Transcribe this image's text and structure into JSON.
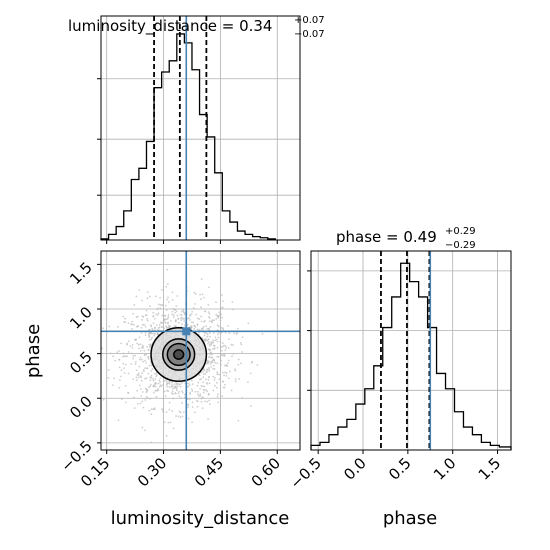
{
  "colors": {
    "truth": "#4682b4",
    "histogram": "#000000",
    "contour": "#000000",
    "grid": "#b0b0b0",
    "scatter": "#bbbbbb"
  },
  "chart_data": {
    "type": "corner",
    "parameters": [
      "luminosity_distance",
      "phase"
    ],
    "truths": {
      "luminosity_distance": 0.36,
      "phase": 0.75
    },
    "titles": [
      {
        "param": "luminosity_distance",
        "median": "0.34",
        "plus": "+0.07",
        "minus": "−0.07"
      },
      {
        "param": "phase",
        "median": "0.49",
        "plus": "+0.29",
        "minus": "−0.29"
      }
    ],
    "marginals": {
      "luminosity_distance": {
        "xlim": [
          0.135,
          0.66
        ],
        "quantiles": [
          0.275,
          0.343,
          0.413
        ],
        "bins": [
          {
            "x0": 0.135,
            "x1": 0.155,
            "density": 0.05
          },
          {
            "x0": 0.155,
            "x1": 0.175,
            "density": 0.25
          },
          {
            "x0": 0.175,
            "x1": 0.195,
            "density": 0.6
          },
          {
            "x0": 0.195,
            "x1": 0.215,
            "density": 1.3
          },
          {
            "x0": 0.215,
            "x1": 0.235,
            "density": 2.7
          },
          {
            "x0": 0.235,
            "x1": 0.255,
            "density": 3.2
          },
          {
            "x0": 0.255,
            "x1": 0.275,
            "density": 4.4
          },
          {
            "x0": 0.275,
            "x1": 0.295,
            "density": 6.8
          },
          {
            "x0": 0.295,
            "x1": 0.315,
            "density": 7.5
          },
          {
            "x0": 0.315,
            "x1": 0.335,
            "density": 8.0
          },
          {
            "x0": 0.335,
            "x1": 0.355,
            "density": 9.2
          },
          {
            "x0": 0.355,
            "x1": 0.375,
            "density": 8.8
          },
          {
            "x0": 0.375,
            "x1": 0.395,
            "density": 7.6
          },
          {
            "x0": 0.395,
            "x1": 0.415,
            "density": 5.6
          },
          {
            "x0": 0.415,
            "x1": 0.435,
            "density": 4.6
          },
          {
            "x0": 0.435,
            "x1": 0.455,
            "density": 3.0
          },
          {
            "x0": 0.455,
            "x1": 0.475,
            "density": 1.3
          },
          {
            "x0": 0.475,
            "x1": 0.495,
            "density": 0.8
          },
          {
            "x0": 0.495,
            "x1": 0.515,
            "density": 0.4
          },
          {
            "x0": 0.515,
            "x1": 0.535,
            "density": 0.25
          },
          {
            "x0": 0.535,
            "x1": 0.555,
            "density": 0.15
          },
          {
            "x0": 0.555,
            "x1": 0.575,
            "density": 0.1
          },
          {
            "x0": 0.575,
            "x1": 0.595,
            "density": 0.05
          }
        ],
        "ymax": 10
      },
      "phase": {
        "xlim": [
          -0.58,
          1.65
        ],
        "quantiles": [
          0.2,
          0.49,
          0.74
        ],
        "bins": [
          {
            "x0": -0.58,
            "x1": -0.48,
            "density": 0.03
          },
          {
            "x0": -0.48,
            "x1": -0.38,
            "density": 0.05
          },
          {
            "x0": -0.38,
            "x1": -0.28,
            "density": 0.1
          },
          {
            "x0": -0.28,
            "x1": -0.18,
            "density": 0.15
          },
          {
            "x0": -0.18,
            "x1": -0.08,
            "density": 0.2
          },
          {
            "x0": -0.08,
            "x1": 0.02,
            "density": 0.3
          },
          {
            "x0": 0.02,
            "x1": 0.12,
            "density": 0.4
          },
          {
            "x0": 0.12,
            "x1": 0.22,
            "density": 0.55
          },
          {
            "x0": 0.22,
            "x1": 0.32,
            "density": 0.8
          },
          {
            "x0": 0.32,
            "x1": 0.42,
            "density": 1.0
          },
          {
            "x0": 0.42,
            "x1": 0.52,
            "density": 1.22
          },
          {
            "x0": 0.52,
            "x1": 0.62,
            "density": 1.1
          },
          {
            "x0": 0.62,
            "x1": 0.72,
            "density": 1.0
          },
          {
            "x0": 0.72,
            "x1": 0.82,
            "density": 0.8
          },
          {
            "x0": 0.82,
            "x1": 0.92,
            "density": 0.5
          },
          {
            "x0": 0.92,
            "x1": 1.02,
            "density": 0.4
          },
          {
            "x0": 1.02,
            "x1": 1.12,
            "density": 0.25
          },
          {
            "x0": 1.12,
            "x1": 1.22,
            "density": 0.15
          },
          {
            "x0": 1.22,
            "x1": 1.32,
            "density": 0.1
          },
          {
            "x0": 1.32,
            "x1": 1.42,
            "density": 0.05
          },
          {
            "x0": 1.42,
            "x1": 1.52,
            "density": 0.03
          },
          {
            "x0": 1.52,
            "x1": 1.65,
            "density": 0.02
          }
        ],
        "ymax": 1.3
      }
    },
    "joint": {
      "xlim": [
        0.135,
        0.66
      ],
      "ylim": [
        -0.58,
        1.65
      ],
      "center": [
        0.34,
        0.49
      ],
      "sigma": [
        0.07,
        0.29
      ],
      "contour_levels": [
        [
          0.013,
          0.052
        ],
        [
          0.03,
          0.122
        ],
        [
          0.042,
          0.175
        ],
        [
          0.073,
          0.3
        ]
      ]
    },
    "xlabel": [
      "luminosity_distance",
      "phase"
    ],
    "ylabel": "phase",
    "xticks": {
      "luminosity_distance": [
        {
          "value": 0.15,
          "label": "0.15"
        },
        {
          "value": 0.3,
          "label": "0.30"
        },
        {
          "value": 0.45,
          "label": "0.45"
        },
        {
          "value": 0.6,
          "label": "0.60"
        }
      ],
      "phase": [
        {
          "value": -0.5,
          "label": "−0.5"
        },
        {
          "value": 0.0,
          "label": "0.0"
        },
        {
          "value": 0.5,
          "label": "0.5"
        },
        {
          "value": 1.0,
          "label": "1.0"
        },
        {
          "value": 1.5,
          "label": "1.5"
        }
      ]
    },
    "yticks": {
      "phase": [
        {
          "value": -0.5,
          "label": "−0.5"
        },
        {
          "value": 0.0,
          "label": "0.0"
        },
        {
          "value": 0.5,
          "label": "0.5"
        },
        {
          "value": 1.0,
          "label": "1.0"
        },
        {
          "value": 1.5,
          "label": "1.5"
        }
      ]
    },
    "grid": true
  }
}
